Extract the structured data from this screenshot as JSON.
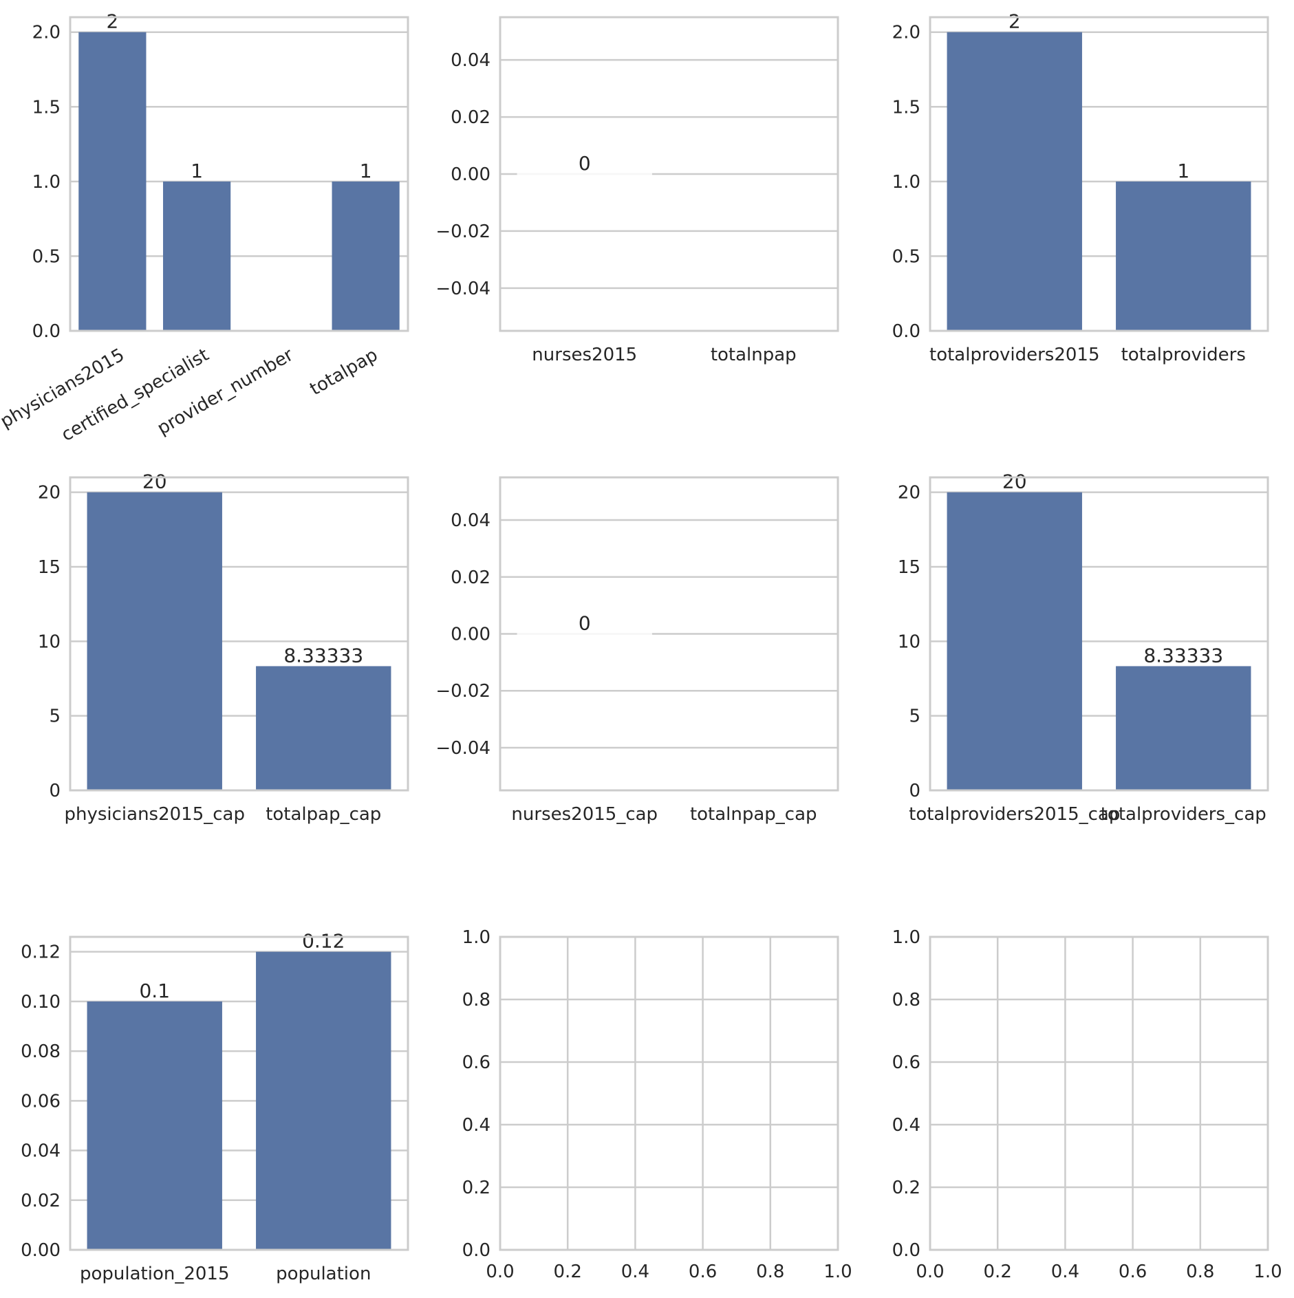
{
  "colors": {
    "bar": "#5975a4",
    "grid": "#cccccc",
    "spine": "#cccccc",
    "text": "#262626",
    "background": "#ffffff"
  },
  "chart_data": [
    {
      "type": "bar",
      "categories": [
        "physicians2015",
        "certified_specialist",
        "provider_number",
        "totalpap"
      ],
      "values": [
        2,
        1,
        null,
        1
      ],
      "value_labels": [
        "2",
        "1",
        "",
        "1"
      ],
      "ylim": [
        0,
        2.1
      ],
      "yticks": [
        0,
        0.5,
        1,
        1.5,
        2
      ],
      "ytick_labels": [
        "0.0",
        "0.5",
        "1.0",
        "1.5",
        "2.0"
      ],
      "xtick_rotation": 30,
      "grid": true
    },
    {
      "type": "bar",
      "categories": [
        "nurses2015",
        "totalnpap"
      ],
      "values": [
        0,
        null
      ],
      "value_labels": [
        "0",
        ""
      ],
      "ylim": [
        -0.055,
        0.055
      ],
      "yticks": [
        -0.04,
        -0.02,
        0,
        0.02,
        0.04
      ],
      "ytick_labels": [
        "−0.04",
        "−0.02",
        "0.00",
        "0.02",
        "0.04"
      ],
      "grid": true
    },
    {
      "type": "bar",
      "categories": [
        "totalproviders2015",
        "totalproviders"
      ],
      "values": [
        2,
        1
      ],
      "value_labels": [
        "2",
        "1"
      ],
      "ylim": [
        0,
        2.1
      ],
      "yticks": [
        0,
        0.5,
        1,
        1.5,
        2
      ],
      "ytick_labels": [
        "0.0",
        "0.5",
        "1.0",
        "1.5",
        "2.0"
      ],
      "grid": true
    },
    {
      "type": "bar",
      "categories": [
        "physicians2015_cap",
        "totalpap_cap"
      ],
      "values": [
        20,
        8.33333
      ],
      "value_labels": [
        "20",
        "8.33333"
      ],
      "ylim": [
        0,
        21
      ],
      "yticks": [
        0,
        5,
        10,
        15,
        20
      ],
      "ytick_labels": [
        "0",
        "5",
        "10",
        "15",
        "20"
      ],
      "grid": true
    },
    {
      "type": "bar",
      "categories": [
        "nurses2015_cap",
        "totalnpap_cap"
      ],
      "values": [
        0,
        null
      ],
      "value_labels": [
        "0",
        ""
      ],
      "ylim": [
        -0.055,
        0.055
      ],
      "yticks": [
        -0.04,
        -0.02,
        0,
        0.02,
        0.04
      ],
      "ytick_labels": [
        "−0.04",
        "−0.02",
        "0.00",
        "0.02",
        "0.04"
      ],
      "grid": true
    },
    {
      "type": "bar",
      "categories": [
        "totalproviders2015_cap",
        "totalproviders_cap"
      ],
      "values": [
        20,
        8.33333
      ],
      "value_labels": [
        "20",
        "8.33333"
      ],
      "ylim": [
        0,
        21
      ],
      "yticks": [
        0,
        5,
        10,
        15,
        20
      ],
      "ytick_labels": [
        "0",
        "5",
        "10",
        "15",
        "20"
      ],
      "grid": true
    },
    {
      "type": "bar",
      "categories": [
        "population_2015",
        "population"
      ],
      "values": [
        0.1,
        0.12
      ],
      "value_labels": [
        "0.1",
        "0.12"
      ],
      "ylim": [
        0,
        0.126
      ],
      "yticks": [
        0,
        0.02,
        0.04,
        0.06,
        0.08,
        0.1,
        0.12
      ],
      "ytick_labels": [
        "0.00",
        "0.02",
        "0.04",
        "0.06",
        "0.08",
        "0.10",
        "0.12"
      ],
      "grid": true
    },
    {
      "type": "empty",
      "categories": [],
      "values": [],
      "xlim": [
        0,
        1
      ],
      "ylim": [
        0,
        1
      ],
      "xticks": [
        0,
        0.2,
        0.4,
        0.6,
        0.8,
        1
      ],
      "xtick_labels": [
        "0.0",
        "0.2",
        "0.4",
        "0.6",
        "0.8",
        "1.0"
      ],
      "yticks": [
        0,
        0.2,
        0.4,
        0.6,
        0.8,
        1
      ],
      "ytick_labels": [
        "0.0",
        "0.2",
        "0.4",
        "0.6",
        "0.8",
        "1.0"
      ],
      "grid": true
    },
    {
      "type": "empty",
      "categories": [],
      "values": [],
      "xlim": [
        0,
        1
      ],
      "ylim": [
        0,
        1
      ],
      "xticks": [
        0,
        0.2,
        0.4,
        0.6,
        0.8,
        1
      ],
      "xtick_labels": [
        "0.0",
        "0.2",
        "0.4",
        "0.6",
        "0.8",
        "1.0"
      ],
      "yticks": [
        0,
        0.2,
        0.4,
        0.6,
        0.8,
        1
      ],
      "ytick_labels": [
        "0.0",
        "0.2",
        "0.4",
        "0.6",
        "0.8",
        "1.0"
      ],
      "grid": true
    }
  ]
}
